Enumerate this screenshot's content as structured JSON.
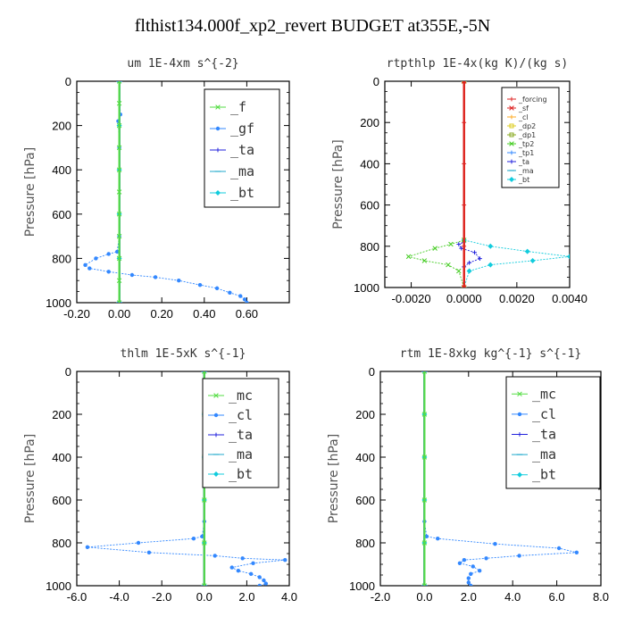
{
  "figure_title": "flthist134.000f_xp2_revert  BUDGET at355E,-5N",
  "chart_data": [
    {
      "type": "line",
      "title": "um  1E-4xm s^{-2}",
      "ylabel": "Pressure [hPa]",
      "xlim": [
        -0.2,
        0.8
      ],
      "ylim": [
        1000,
        0
      ],
      "xticks": [
        -0.2,
        0.0,
        0.2,
        0.4,
        0.6
      ],
      "xtick_labels": [
        "-0.20",
        "0.00",
        "0.20",
        "0.40",
        "0.60"
      ],
      "yticks": [
        0,
        200,
        400,
        600,
        800,
        1000
      ],
      "legend_position": "top-right",
      "series": [
        {
          "name": "_f",
          "color": "#55dd44",
          "marker": "x",
          "points": [
            [
              0,
              0
            ],
            [
              0,
              100
            ],
            [
              0,
              200
            ],
            [
              0,
              300
            ],
            [
              0,
              400
            ],
            [
              0,
              500
            ],
            [
              0,
              600
            ],
            [
              0,
              700
            ],
            [
              0,
              800
            ],
            [
              0,
              900
            ],
            [
              0,
              1000
            ]
          ]
        },
        {
          "name": "_gf",
          "color": "#3388ff",
          "marker": "dot",
          "points": [
            [
              0.0,
              0
            ],
            [
              0.005,
              150
            ],
            [
              -0.005,
              180
            ],
            [
              0.0,
              300
            ],
            [
              0.0,
              700
            ],
            [
              -0.01,
              770
            ],
            [
              -0.05,
              780
            ],
            [
              -0.11,
              800
            ],
            [
              -0.16,
              830
            ],
            [
              -0.14,
              845
            ],
            [
              -0.05,
              860
            ],
            [
              0.06,
              875
            ],
            [
              0.17,
              885
            ],
            [
              0.28,
              900
            ],
            [
              0.38,
              920
            ],
            [
              0.46,
              935
            ],
            [
              0.52,
              955
            ],
            [
              0.57,
              970
            ],
            [
              0.59,
              985
            ],
            [
              0.6,
              1000
            ]
          ]
        },
        {
          "name": "_ta",
          "color": "#2222dd",
          "marker": "plus",
          "points": [
            [
              0,
              0
            ],
            [
              0,
              1000
            ]
          ]
        },
        {
          "name": "_ma",
          "color": "#22aacc",
          "marker": "dash",
          "points": [
            [
              0,
              0
            ],
            [
              0,
              1000
            ]
          ]
        },
        {
          "name": "_bt",
          "color": "#11ccdd",
          "marker": "diamond",
          "points": [
            [
              0,
              0
            ],
            [
              0,
              200
            ],
            [
              0,
              400
            ],
            [
              0,
              600
            ],
            [
              0,
              800
            ],
            [
              0,
              1000
            ]
          ]
        }
      ]
    },
    {
      "type": "line",
      "title": "rtpthlp  1E-4x(kg K)/(kg s)",
      "ylabel": "Pressure [hPa]",
      "xlim": [
        -0.003,
        0.004
      ],
      "ylim": [
        1000,
        0
      ],
      "xticks": [
        -0.002,
        0.0,
        0.002,
        0.004
      ],
      "xtick_labels": [
        "-0.0020",
        "0.0000",
        "0.0020",
        "0.0040"
      ],
      "yticks": [
        0,
        200,
        400,
        600,
        800,
        1000
      ],
      "legend_position": "top-right",
      "series": [
        {
          "name": "_forcing",
          "color": "#dd2222",
          "marker": "plus",
          "points": [
            [
              0,
              0
            ],
            [
              0,
              200
            ],
            [
              0,
              400
            ],
            [
              0,
              600
            ],
            [
              0,
              800
            ],
            [
              0,
              1000
            ]
          ]
        },
        {
          "name": "_sf",
          "color": "#dd2222",
          "marker": "x",
          "points": [
            [
              0,
              0
            ],
            [
              0,
              1000
            ]
          ]
        },
        {
          "name": "_cl",
          "color": "#ffaa22",
          "marker": "plus",
          "points": [
            [
              0,
              0
            ],
            [
              0,
              1000
            ]
          ]
        },
        {
          "name": "_dp2",
          "color": "#ddcc22",
          "marker": "square",
          "points": [
            [
              0,
              0
            ],
            [
              0,
              1000
            ]
          ]
        },
        {
          "name": "_dp1",
          "color": "#88aa22",
          "marker": "square",
          "points": [
            [
              0,
              0
            ],
            [
              0,
              1000
            ]
          ]
        },
        {
          "name": "_tp2",
          "color": "#44cc22",
          "marker": "x",
          "points": [
            [
              0,
              0
            ],
            [
              0,
              770
            ],
            [
              -0.0005,
              790
            ],
            [
              -0.0011,
              810
            ],
            [
              -0.0021,
              850
            ],
            [
              -0.0015,
              870
            ],
            [
              -0.0006,
              890
            ],
            [
              -0.0002,
              920
            ],
            [
              0,
              1000
            ]
          ]
        },
        {
          "name": "_tp1",
          "color": "#3388ff",
          "marker": "plus",
          "points": [
            [
              0,
              0
            ],
            [
              0,
              1000
            ]
          ]
        },
        {
          "name": "_ta",
          "color": "#2222dd",
          "marker": "plus",
          "points": [
            [
              0,
              0
            ],
            [
              0,
              780
            ],
            [
              -0.0002,
              790
            ],
            [
              -0.0001,
              810
            ],
            [
              0.0004,
              830
            ],
            [
              0.0006,
              860
            ],
            [
              0.0002,
              880
            ],
            [
              0,
              900
            ],
            [
              0,
              1000
            ]
          ]
        },
        {
          "name": "_ma",
          "color": "#22aacc",
          "marker": "dash",
          "points": [
            [
              0,
              0
            ],
            [
              0,
              1000
            ]
          ]
        },
        {
          "name": "_bt",
          "color": "#11ccdd",
          "marker": "diamond",
          "points": [
            [
              0,
              0
            ],
            [
              0,
              770
            ],
            [
              0.001,
              800
            ],
            [
              0.0024,
              825
            ],
            [
              0.004,
              850
            ],
            [
              0.0026,
              870
            ],
            [
              0.001,
              890
            ],
            [
              0.0002,
              920
            ],
            [
              0,
              1000
            ]
          ]
        }
      ]
    },
    {
      "type": "line",
      "title": "thlm  1E-5xK s^{-1}",
      "ylabel": "Pressure [hPa]",
      "xlim": [
        -6.0,
        4.0
      ],
      "ylim": [
        1000,
        0
      ],
      "xticks": [
        -6.0,
        -4.0,
        -2.0,
        0.0,
        2.0,
        4.0
      ],
      "xtick_labels": [
        "-6.0",
        "-4.0",
        "-2.0",
        "0.0",
        "2.0",
        "4.0"
      ],
      "yticks": [
        0,
        200,
        400,
        600,
        800,
        1000
      ],
      "legend_position": "top-right",
      "series": [
        {
          "name": "_mc",
          "color": "#55dd44",
          "marker": "x",
          "points": [
            [
              0,
              0
            ],
            [
              0,
              200
            ],
            [
              0,
              400
            ],
            [
              0,
              600
            ],
            [
              0,
              800
            ],
            [
              0,
              1000
            ]
          ]
        },
        {
          "name": "_cl",
          "color": "#3388ff",
          "marker": "dot",
          "points": [
            [
              0,
              0
            ],
            [
              0,
              700
            ],
            [
              -0.1,
              770
            ],
            [
              -0.5,
              780
            ],
            [
              -3.1,
              800
            ],
            [
              -5.5,
              820
            ],
            [
              -2.6,
              845
            ],
            [
              0.5,
              860
            ],
            [
              1.8,
              872
            ],
            [
              3.8,
              880
            ],
            [
              2.3,
              895
            ],
            [
              1.3,
              915
            ],
            [
              1.6,
              930
            ],
            [
              2.2,
              945
            ],
            [
              2.6,
              960
            ],
            [
              2.8,
              975
            ],
            [
              2.9,
              990
            ],
            [
              2.6,
              1000
            ]
          ]
        },
        {
          "name": "_ta",
          "color": "#2222dd",
          "marker": "plus",
          "points": [
            [
              0,
              0
            ],
            [
              0,
              1000
            ]
          ]
        },
        {
          "name": "_ma",
          "color": "#22aacc",
          "marker": "dash",
          "points": [
            [
              0,
              0
            ],
            [
              0,
              1000
            ]
          ]
        },
        {
          "name": "_bt",
          "color": "#11ccdd",
          "marker": "diamond",
          "points": [
            [
              0,
              0
            ],
            [
              0,
              200
            ],
            [
              0,
              400
            ],
            [
              0,
              600
            ],
            [
              0,
              800
            ],
            [
              0,
              1000
            ]
          ]
        }
      ]
    },
    {
      "type": "line",
      "title": "rtm  1E-8xkg kg^{-1} s^{-1}",
      "ylabel": "Pressure [hPa]",
      "xlim": [
        -2.0,
        8.0
      ],
      "ylim": [
        1000,
        0
      ],
      "xticks": [
        -2.0,
        0.0,
        2.0,
        4.0,
        6.0,
        8.0
      ],
      "xtick_labels": [
        "-2.0",
        "0.0",
        "2.0",
        "4.0",
        "6.0",
        "8.0"
      ],
      "yticks": [
        0,
        200,
        400,
        600,
        800,
        1000
      ],
      "legend_position": "top-right",
      "series": [
        {
          "name": "_mc",
          "color": "#55dd44",
          "marker": "x",
          "points": [
            [
              0,
              0
            ],
            [
              0,
              200
            ],
            [
              0,
              400
            ],
            [
              0,
              600
            ],
            [
              0,
              800
            ],
            [
              0,
              1000
            ]
          ]
        },
        {
          "name": "_cl",
          "color": "#3388ff",
          "marker": "dot",
          "points": [
            [
              0,
              0
            ],
            [
              0,
              700
            ],
            [
              0.1,
              770
            ],
            [
              0.6,
              780
            ],
            [
              3.2,
              805
            ],
            [
              6.1,
              825
            ],
            [
              6.9,
              845
            ],
            [
              4.3,
              860
            ],
            [
              2.8,
              872
            ],
            [
              1.8,
              880
            ],
            [
              1.6,
              895
            ],
            [
              2.2,
              910
            ],
            [
              2.5,
              930
            ],
            [
              2.1,
              945
            ],
            [
              2.0,
              965
            ],
            [
              2.0,
              985
            ],
            [
              2.1,
              1000
            ]
          ]
        },
        {
          "name": "_ta",
          "color": "#2222dd",
          "marker": "plus",
          "points": [
            [
              0,
              0
            ],
            [
              0,
              1000
            ]
          ]
        },
        {
          "name": "_ma",
          "color": "#22aacc",
          "marker": "dash",
          "points": [
            [
              0,
              0
            ],
            [
              0,
              1000
            ]
          ]
        },
        {
          "name": "_bt",
          "color": "#11ccdd",
          "marker": "diamond",
          "points": [
            [
              0,
              0
            ],
            [
              0,
              200
            ],
            [
              0,
              400
            ],
            [
              0,
              600
            ],
            [
              0,
              800
            ],
            [
              0,
              1000
            ]
          ]
        }
      ]
    }
  ]
}
